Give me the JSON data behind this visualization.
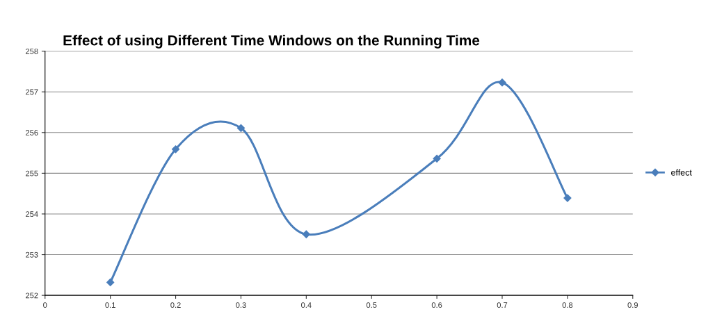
{
  "chart_data": {
    "type": "line",
    "title": "Effect of using Different Time Windows on the Running Time",
    "x": [
      0.1,
      0.2,
      0.3,
      0.4,
      0.6,
      0.7,
      0.8
    ],
    "series": [
      {
        "name": "effect",
        "color": "#4a7ebb",
        "values": [
          252.32,
          255.59,
          256.11,
          253.5,
          255.36,
          257.23,
          254.39
        ]
      }
    ],
    "xlim": [
      0,
      0.9
    ],
    "xticks": [
      0,
      0.1,
      0.2,
      0.3,
      0.4,
      0.5,
      0.6,
      0.7,
      0.8,
      0.9
    ],
    "ylim": [
      252,
      258
    ],
    "yticks": [
      252,
      253,
      254,
      255,
      256,
      257,
      258
    ],
    "grid": "y",
    "legend": "right",
    "marker": "diamond",
    "line_style": "solid"
  }
}
